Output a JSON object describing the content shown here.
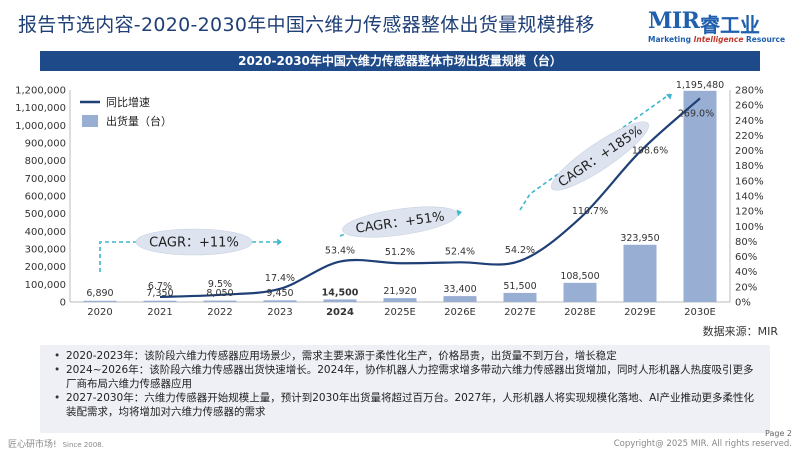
{
  "header": {
    "title": "报告节选内容-2020-2030年中国六维力传感器整体出货量规模推移",
    "logo_brand": "MIR",
    "logo_brand_cn": "睿工业",
    "logo_tagline_a": "Marketing ",
    "logo_tagline_b": "Intelligence",
    "logo_tagline_c": " Resource"
  },
  "chart_banner": "2020-2030年中国六维力传感器整体市场出货量规模（台）",
  "chart_data": {
    "type": "bar",
    "categories": [
      "2020",
      "2021",
      "2022",
      "2023",
      "2024",
      "2025E",
      "2026E",
      "2027E",
      "2028E",
      "2029E",
      "2030E"
    ],
    "series": [
      {
        "name": "出货量（台）",
        "kind": "bar",
        "axis": "left",
        "values": [
          6890,
          7350,
          8050,
          9450,
          14500,
          21920,
          33400,
          51500,
          108500,
          323950,
          1195480
        ],
        "value_labels": [
          "6,890",
          "7,350",
          "8,050",
          "9,450",
          "14,500",
          "21,920",
          "33,400",
          "51,500",
          "108,500",
          "323,950",
          "1,195,480"
        ]
      },
      {
        "name": "同比增速",
        "kind": "line",
        "axis": "right",
        "values": [
          null,
          6.7,
          9.5,
          17.4,
          53.4,
          51.2,
          52.4,
          54.2,
          110.7,
          198.6,
          269.0
        ],
        "value_labels": [
          "",
          "6.7%",
          "9.5%",
          "17.4%",
          "53.4%",
          "51.2%",
          "52.4%",
          "54.2%",
          "110.7%",
          "198.6%",
          "269.0%"
        ]
      }
    ],
    "y_left": {
      "min": 0,
      "max": 1200000,
      "step": 100000,
      "tick_labels": [
        "0",
        "100,000",
        "200,000",
        "300,000",
        "400,000",
        "500,000",
        "600,000",
        "700,000",
        "800,000",
        "900,000",
        "1,000,000",
        "1,100,000",
        "1,200,000"
      ]
    },
    "y_right": {
      "min": 0,
      "max": 280,
      "step": 20,
      "tick_labels": [
        "0%",
        "20%",
        "40%",
        "60%",
        "80%",
        "100%",
        "120%",
        "140%",
        "160%",
        "180%",
        "200%",
        "220%",
        "240%",
        "260%",
        "280%"
      ]
    },
    "bold_category": "2024",
    "legend": {
      "position": "top-left",
      "line_label": "同比增速",
      "bar_label": "出货量（台）"
    },
    "annotations": [
      {
        "text": "CAGR：+11%",
        "from": "2020",
        "to": "2023"
      },
      {
        "text": "CAGR：+51%",
        "from": "2024",
        "to": "2026E"
      },
      {
        "text": "CAGR：+185%",
        "from": "2027E",
        "to": "2030E"
      }
    ],
    "colors": {
      "bar": "#99aed3",
      "line": "#1f3f77",
      "arrow": "#3fb5cf",
      "cagr_bubble": "#dde3ef"
    }
  },
  "source": "数据来源：MIR",
  "notes": [
    "2020-2023年：该阶段六维力传感器应用场景少，需求主要来源于柔性化生产，价格昂贵，出货量不到万台，增长稳定",
    "2024~2026年：该阶段六维力传感器出货快速增长。2024年，协作机器人力控需求增多带动六维力传感器出货增加，同时人形机器人热度吸引更多厂商布局六维力传感器应用",
    "2027-2030年：六维力传感器开始规模上量，预计到2030年出货量将超过百万台。2027年，人形机器人将实现规模化落地、AI产业推动更多柔性化装配需求，均将增加对六维力传感器的需求"
  ],
  "footer": {
    "left": "匠心研市场!",
    "since": "Since 2008.",
    "page": "Page 2",
    "copyright": "Copyright@ 2025 MIR. All rights reserved."
  }
}
